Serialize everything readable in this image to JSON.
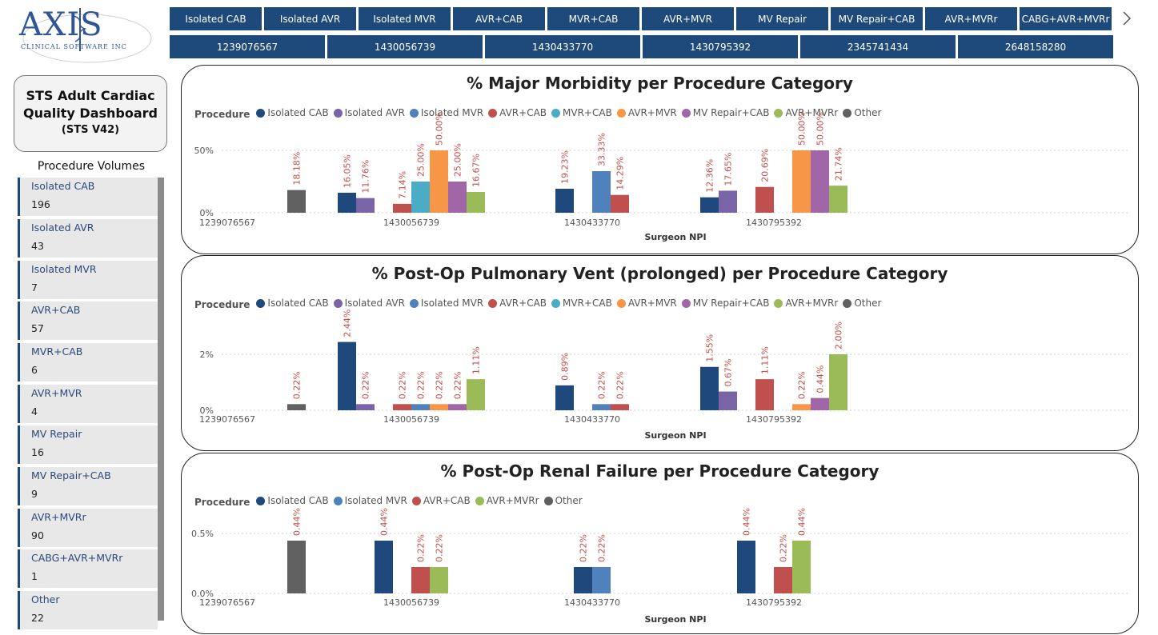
{
  "logo": {
    "brand": "AXIS",
    "tagline": "CLINICAL SOFTWARE INC"
  },
  "procedure_filters": [
    "Isolated CAB",
    "Isolated AVR",
    "Isolated MVR",
    "AVR+CAB",
    "MVR+CAB",
    "AVR+MVR",
    "MV Repair",
    "MV Repair+CAB",
    "AVR+MVRr",
    "CABG+AVR+MVRr"
  ],
  "npi_filters": [
    "1239076567",
    "1430056739",
    "1430433770",
    "1430795392",
    "2345741434",
    "2648158280"
  ],
  "dashboard": {
    "title_line1": "STS Adult Cardiac",
    "title_line2": "Quality Dashboard",
    "subtitle": "(STS V42)"
  },
  "procedure_volumes": {
    "title": "Procedure Volumes",
    "items": [
      {
        "name": "Isolated CAB",
        "value": "196"
      },
      {
        "name": "Isolated AVR",
        "value": "43"
      },
      {
        "name": "Isolated MVR",
        "value": "7"
      },
      {
        "name": "AVR+CAB",
        "value": "57"
      },
      {
        "name": "MVR+CAB",
        "value": "6"
      },
      {
        "name": "AVR+MVR",
        "value": "4"
      },
      {
        "name": "MV Repair",
        "value": "16"
      },
      {
        "name": "MV Repair+CAB",
        "value": "9"
      },
      {
        "name": "AVR+MVRr",
        "value": "90"
      },
      {
        "name": "CABG+AVR+MVRr",
        "value": "1"
      },
      {
        "name": "Other",
        "value": "22"
      }
    ]
  },
  "colors": {
    "accent": "#1e4a7b",
    "Isolated CAB": "#1f497d",
    "Isolated AVR": "#7a64a8",
    "Isolated MVR": "#4f81bd",
    "AVR+CAB": "#c0504d",
    "MVR+CAB": "#4bacc6",
    "AVR+MVR": "#f79646",
    "MV Repair+CAB": "#a066a8",
    "AVR+MVRr": "#9bbb59",
    "Other": "#606060",
    "label_red": "#c0504d"
  },
  "chart_data": [
    {
      "type": "bar",
      "title": "% Major Morbidity per Procedure Category",
      "legend_title": "Procedure",
      "legend": [
        "Isolated CAB",
        "Isolated AVR",
        "Isolated MVR",
        "AVR+CAB",
        "MVR+CAB",
        "AVR+MVR",
        "MV Repair+CAB",
        "AVR+MVRr",
        "Other"
      ],
      "xlabel": "Surgeon NPI",
      "ylabel": "",
      "ylim": [
        0,
        0.5
      ],
      "yticks": [
        {
          "v": 0,
          "label": "0%"
        },
        {
          "v": 0.5,
          "label": "50%"
        }
      ],
      "categories": [
        "1239076567",
        "1430056739",
        "1430433770",
        "1430795392"
      ],
      "groups": [
        [
          {
            "s": "Other",
            "v": 0.1818,
            "label": "18.18%"
          }
        ],
        [
          {
            "s": "Isolated CAB",
            "v": 0.1605,
            "label": "16.05%"
          },
          {
            "s": "Isolated AVR",
            "v": 0.1176,
            "label": "11.76%"
          },
          {
            "gap": true
          },
          {
            "s": "AVR+CAB",
            "v": 0.0714,
            "label": "7.14%"
          },
          {
            "s": "MVR+CAB",
            "v": 0.25,
            "label": "25.00%"
          },
          {
            "s": "AVR+MVR",
            "v": 0.5,
            "label": "50.00%"
          },
          {
            "s": "MV Repair+CAB",
            "v": 0.25,
            "label": "25.00%"
          },
          {
            "s": "AVR+MVRr",
            "v": 0.1667,
            "label": "16.67%"
          }
        ],
        [
          {
            "s": "Isolated CAB",
            "v": 0.1923,
            "label": "19.23%"
          },
          {
            "gap": true
          },
          {
            "s": "Isolated MVR",
            "v": 0.3333,
            "label": "33.33%"
          },
          {
            "s": "AVR+CAB",
            "v": 0.1429,
            "label": "14.29%"
          }
        ],
        [
          {
            "s": "Isolated CAB",
            "v": 0.1236,
            "label": "12.36%"
          },
          {
            "s": "Isolated AVR",
            "v": 0.1765,
            "label": "17.65%"
          },
          {
            "gap": true
          },
          {
            "s": "AVR+CAB",
            "v": 0.2069,
            "label": "20.69%"
          },
          {
            "gap": true
          },
          {
            "s": "AVR+MVR",
            "v": 0.5,
            "label": "50.00%"
          },
          {
            "s": "MV Repair+CAB",
            "v": 0.5,
            "label": "50.00%"
          },
          {
            "s": "AVR+MVRr",
            "v": 0.2174,
            "label": "21.74%"
          }
        ]
      ]
    },
    {
      "type": "bar",
      "title": "% Post-Op Pulmonary Vent (prolonged) per Procedure Category",
      "legend_title": "Procedure",
      "legend": [
        "Isolated CAB",
        "Isolated AVR",
        "Isolated MVR",
        "AVR+CAB",
        "MVR+CAB",
        "AVR+MVR",
        "MV Repair+CAB",
        "AVR+MVRr",
        "Other"
      ],
      "xlabel": "Surgeon NPI",
      "ylabel": "",
      "ylim": [
        0,
        0.02
      ],
      "yticks": [
        {
          "v": 0,
          "label": "0%"
        },
        {
          "v": 0.02,
          "label": "2%"
        }
      ],
      "categories": [
        "1239076567",
        "1430056739",
        "1430433770",
        "1430795392"
      ],
      "groups": [
        [
          {
            "s": "Other",
            "v": 0.0022,
            "label": "0.22%"
          }
        ],
        [
          {
            "s": "Isolated CAB",
            "v": 0.0244,
            "label": "2.44%"
          },
          {
            "s": "Isolated AVR",
            "v": 0.0022,
            "label": "0.22%"
          },
          {
            "gap": true
          },
          {
            "s": "AVR+CAB",
            "v": 0.0022,
            "label": "0.22%"
          },
          {
            "s": "Isolated MVR",
            "v": 0.0022,
            "label": "0.22%"
          },
          {
            "s": "AVR+MVR",
            "v": 0.0022,
            "label": "0.22%"
          },
          {
            "s": "MV Repair+CAB",
            "v": 0.0022,
            "label": "0.22%"
          },
          {
            "s": "AVR+MVRr",
            "v": 0.0111,
            "label": "1.11%"
          }
        ],
        [
          {
            "s": "Isolated CAB",
            "v": 0.0089,
            "label": "0.89%"
          },
          {
            "gap": true
          },
          {
            "s": "Isolated MVR",
            "v": 0.0022,
            "label": "0.22%"
          },
          {
            "s": "AVR+CAB",
            "v": 0.0022,
            "label": "0.22%"
          }
        ],
        [
          {
            "s": "Isolated CAB",
            "v": 0.0155,
            "label": "1.55%"
          },
          {
            "s": "Isolated AVR",
            "v": 0.0067,
            "label": "0.67%"
          },
          {
            "gap": true
          },
          {
            "s": "AVR+CAB",
            "v": 0.0111,
            "label": "1.11%"
          },
          {
            "gap": true
          },
          {
            "s": "AVR+MVR",
            "v": 0.0022,
            "label": "0.22%"
          },
          {
            "s": "MV Repair+CAB",
            "v": 0.0044,
            "label": "0.44%"
          },
          {
            "s": "AVR+MVRr",
            "v": 0.02,
            "label": "2.00%"
          }
        ]
      ]
    },
    {
      "type": "bar",
      "title": "% Post-Op Renal Failure per Procedure Category",
      "legend_title": "Procedure",
      "legend": [
        "Isolated CAB",
        "Isolated MVR",
        "AVR+CAB",
        "AVR+MVRr",
        "Other"
      ],
      "xlabel": "Surgeon NPI",
      "ylabel": "",
      "ylim": [
        0,
        0.005
      ],
      "yticks": [
        {
          "v": 0,
          "label": "0.0%"
        },
        {
          "v": 0.005,
          "label": "0.5%"
        }
      ],
      "categories": [
        "1239076567",
        "1430056739",
        "1430433770",
        "1430795392"
      ],
      "groups": [
        [
          {
            "s": "Other",
            "v": 0.0044,
            "label": "0.44%"
          }
        ],
        [
          {
            "s": "Isolated CAB",
            "v": 0.0044,
            "label": "0.44%"
          },
          {
            "gap": true
          },
          {
            "s": "AVR+CAB",
            "v": 0.0022,
            "label": "0.22%"
          },
          {
            "s": "AVR+MVRr",
            "v": 0.0022,
            "label": "0.22%"
          }
        ],
        [
          {
            "s": "Isolated CAB",
            "v": 0.0022,
            "label": "0.22%"
          },
          {
            "s": "Isolated MVR",
            "v": 0.0022,
            "label": "0.22%"
          }
        ],
        [
          {
            "s": "Isolated CAB",
            "v": 0.0044,
            "label": "0.44%"
          },
          {
            "gap": true
          },
          {
            "s": "AVR+CAB",
            "v": 0.0022,
            "label": "0.22%"
          },
          {
            "s": "AVR+MVRr",
            "v": 0.0044,
            "label": "0.44%"
          }
        ]
      ]
    }
  ]
}
